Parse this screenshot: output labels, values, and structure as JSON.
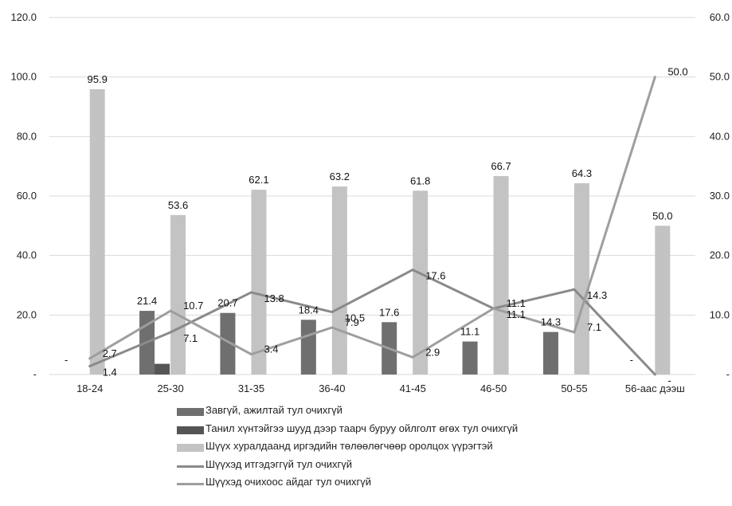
{
  "chart_data": {
    "type": "bar",
    "categories": [
      "18-24",
      "25-30",
      "31-35",
      "36-40",
      "41-45",
      "46-50",
      "50-55",
      "56-аас дээш"
    ],
    "y_left": {
      "ticks": [
        "-",
        "20.0",
        "40.0",
        "60.0",
        "80.0",
        "100.0",
        "120.0"
      ],
      "range": [
        0,
        120
      ]
    },
    "y_right": {
      "ticks": [
        "-",
        "10.0",
        "20.0",
        "30.0",
        "40.0",
        "50.0",
        "60.0"
      ],
      "range": [
        0,
        60
      ]
    },
    "grid": true,
    "legend_position": "bottom",
    "series": [
      {
        "name": "Завгүй, ажилтай тул очихгүй",
        "type": "bar",
        "axis": "left",
        "color": "#6f6f6f",
        "values": [
          0,
          21.4,
          20.7,
          18.4,
          17.6,
          11.1,
          14.3,
          0
        ],
        "labels": [
          "-",
          "21.4",
          "20.7",
          "18.4",
          "17.6",
          "11.1",
          "14.3",
          "-"
        ]
      },
      {
        "name": "Танил хүнтэйгээ шууд дээр таарч буруу ойлголт өгөх тул очихгүй",
        "type": "bar",
        "axis": "left",
        "color": "#555555",
        "values": [
          0,
          3.6,
          0,
          0,
          0,
          0,
          0,
          0
        ],
        "labels": [
          "",
          "",
          "",
          "",
          "",
          "",
          "",
          ""
        ]
      },
      {
        "name": "Шүүх хуралдаанд иргэдийн төлөөлөгчөөр оролцох үүрэгтэй",
        "type": "bar",
        "axis": "left",
        "color": "#c3c3c3",
        "values": [
          95.9,
          53.6,
          62.1,
          63.2,
          61.8,
          66.7,
          64.3,
          50.0
        ],
        "labels": [
          "95.9",
          "53.6",
          "62.1",
          "63.2",
          "61.8",
          "66.7",
          "64.3",
          "50.0"
        ]
      },
      {
        "name": "Шүүхэд итгэдэггүй тул очихгүй",
        "type": "line",
        "axis": "right",
        "color": "#8a8a8a",
        "values": [
          1.4,
          7.1,
          13.8,
          10.5,
          17.6,
          11.1,
          14.3,
          0
        ],
        "labels": [
          "1.4",
          "7.1",
          "13.8",
          "10.5",
          "17.6",
          "11.1",
          "14.3",
          "-"
        ]
      },
      {
        "name": "Шүүхэд очихоос айдаг тул очихгүй",
        "type": "line",
        "axis": "right",
        "color": "#9e9e9e",
        "values": [
          2.7,
          10.7,
          3.4,
          7.9,
          2.9,
          11.1,
          7.1,
          50.0
        ],
        "labels": [
          "2.7",
          "10.7",
          "3.4",
          "7.9",
          "2.9",
          "11.1",
          "7.1",
          "50.0"
        ]
      }
    ]
  }
}
